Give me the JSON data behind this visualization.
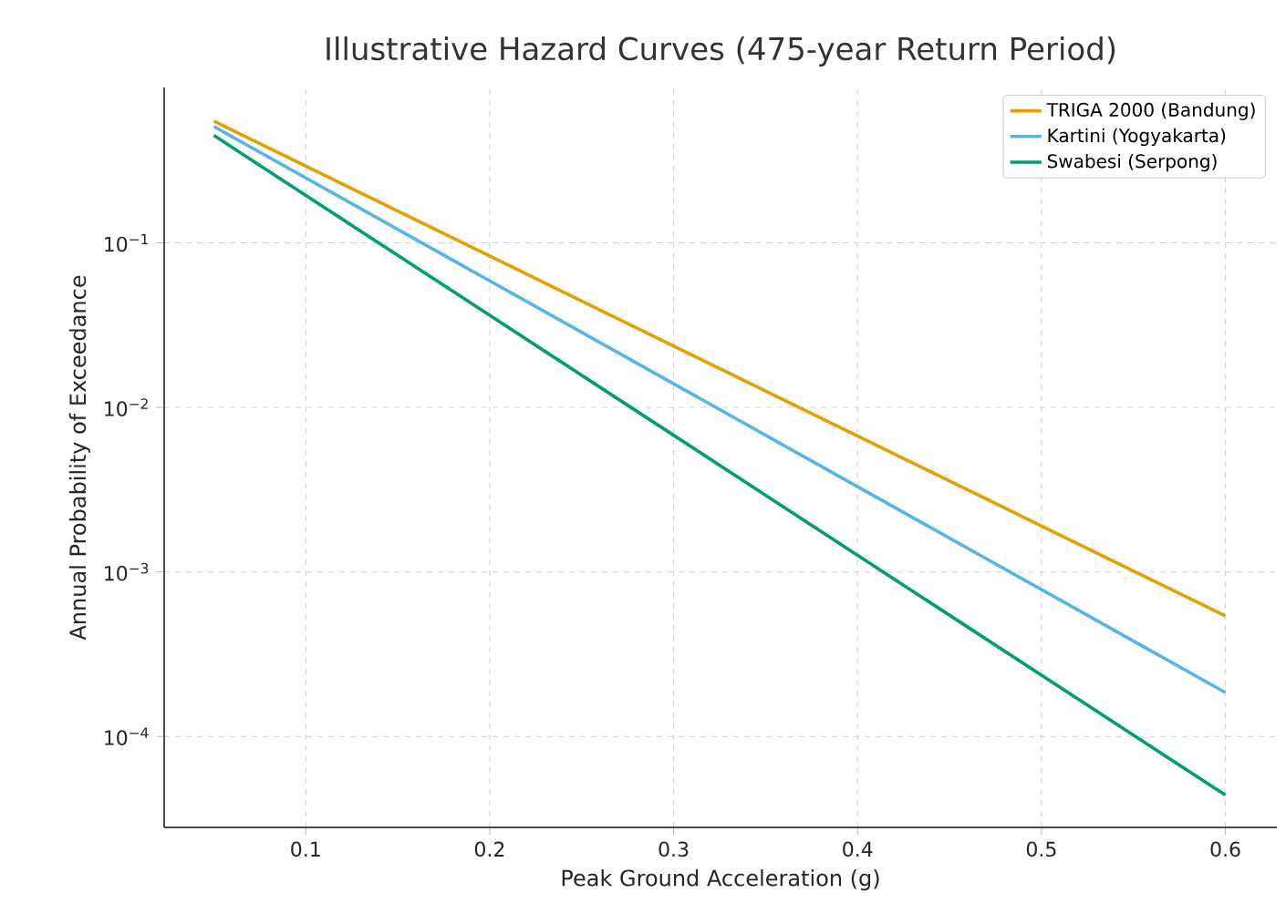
{
  "chart_data": {
    "type": "line",
    "title": "Illustrative Hazard Curves (475-year Return Period)",
    "xlabel": "Peak Ground Acceleration (g)",
    "ylabel": "Annual Probability of Exceedance",
    "x": [
      0.05,
      0.6
    ],
    "series": [
      {
        "name": "TRIGA 2000 (Bandung)",
        "color": "#e69f00",
        "values": [
          0.55,
          0.00054
        ]
      },
      {
        "name": "Kartini (Yogyakarta)",
        "color": "#56b4e9",
        "values": [
          0.51,
          0.000185
        ]
      },
      {
        "name": "Swabesi (Serpong)",
        "color": "#009e73",
        "values": [
          0.45,
          4.4e-05
        ]
      }
    ],
    "log": "y",
    "xlim": [
      0.023,
      0.628
    ],
    "ylim": [
      2.8e-05,
      0.88
    ],
    "xticks": [
      0.1,
      0.2,
      0.3,
      0.4,
      0.5,
      0.6
    ],
    "yticks": [
      {
        "value": 0.0001,
        "label": "10$^{−4}$"
      },
      {
        "value": 0.001,
        "label": "10$^{−3}$"
      },
      {
        "value": 0.01,
        "label": "10$^{−2}$"
      },
      {
        "value": 0.1,
        "label": "10$^{−1}$"
      }
    ],
    "grid": true,
    "legend": "top right",
    "marker": "none",
    "line_style": "solid"
  }
}
